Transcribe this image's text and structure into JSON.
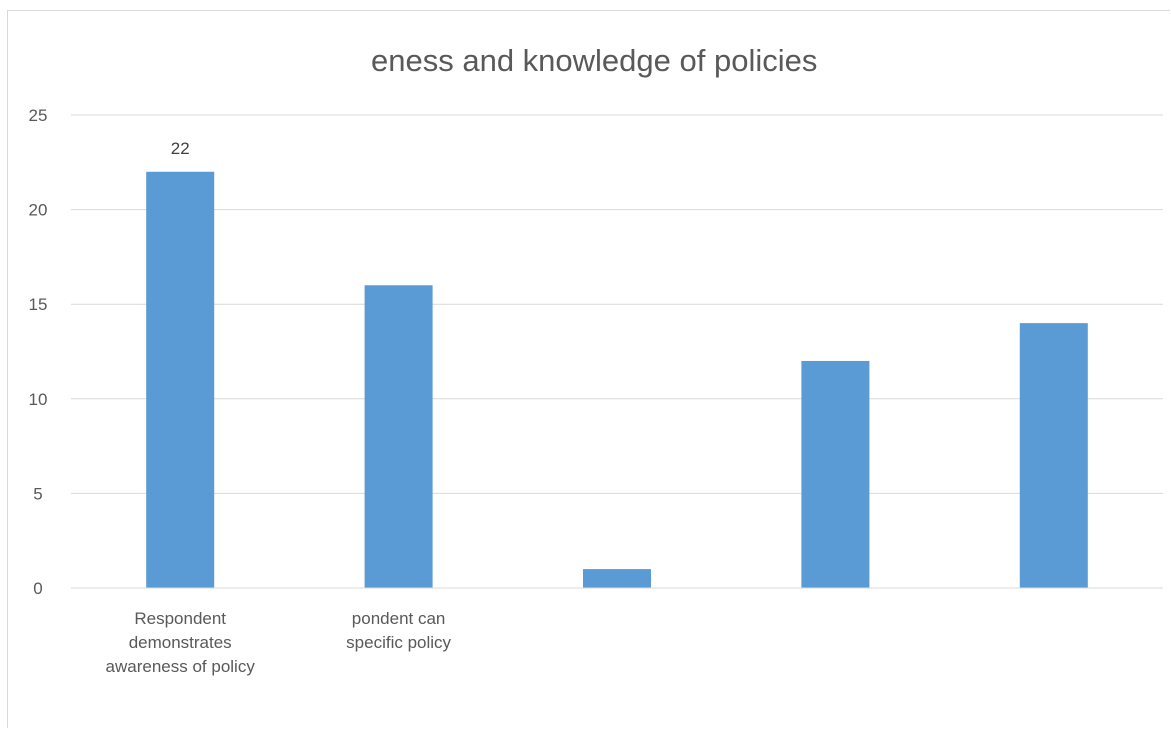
{
  "chart_data": {
    "type": "bar",
    "title": "eness and knowledge of policies",
    "xlabel": "",
    "ylabel": "",
    "categories": [
      [
        "Respondent",
        "demonstrates",
        "awareness of policy"
      ],
      [
        "pondent can",
        "specific policy"
      ],
      [],
      [],
      []
    ],
    "values": [
      22,
      16,
      1,
      12,
      14
    ],
    "data_labels": [
      "22",
      "",
      "",
      "",
      ""
    ],
    "ylim": [
      0,
      25
    ],
    "yticks": [
      0,
      5,
      10,
      15,
      20,
      25
    ],
    "grid": true,
    "legend": "none",
    "colors": {
      "bar": "#5b9bd5",
      "gridline": "#d9d9d9",
      "axis": "#d9d9d9",
      "text": "#595959"
    }
  }
}
